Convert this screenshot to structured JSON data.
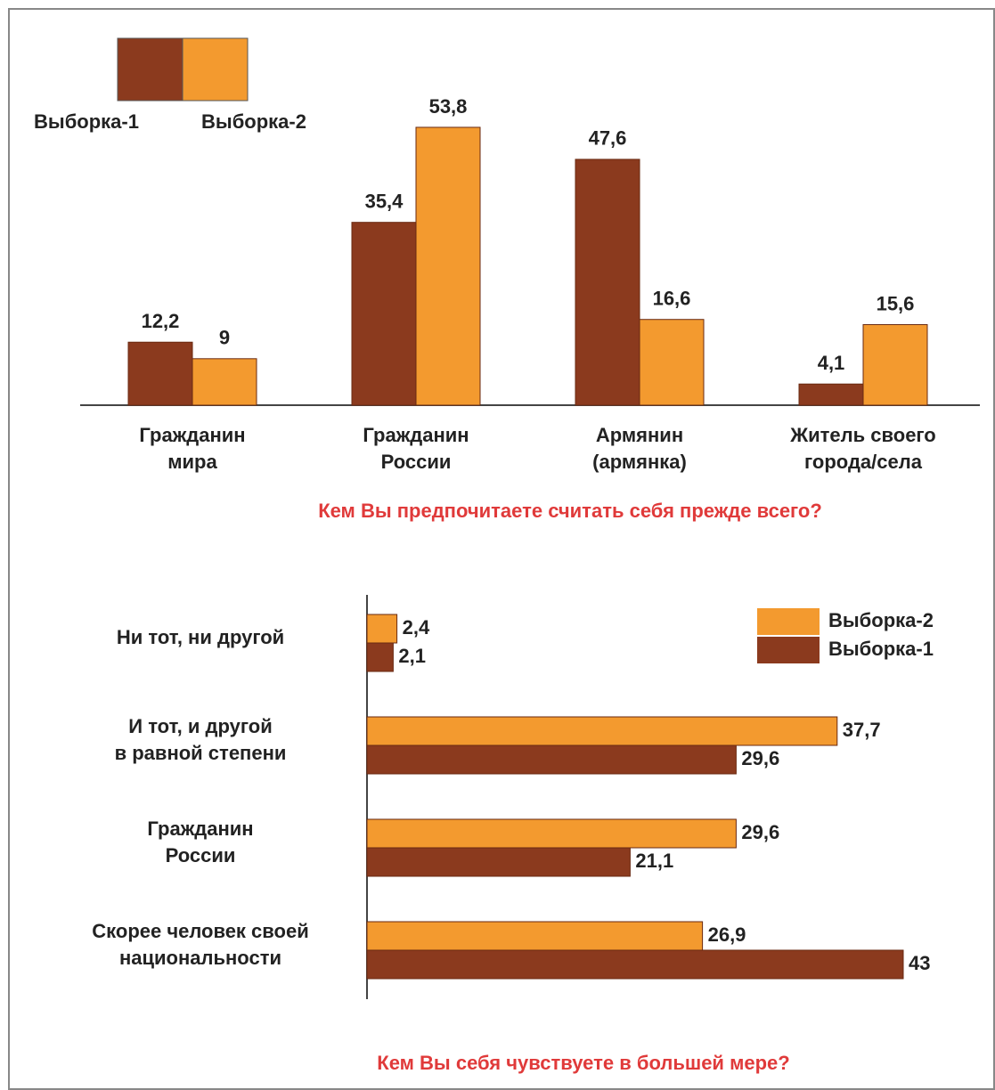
{
  "chart_data": [
    {
      "type": "bar",
      "title": "Кем Вы предпочитаете считать себя прежде всего?",
      "categories": [
        "Гражданин\nмира",
        "Гражданин\nРоссии",
        "Армянин\n(армянка)",
        "Житель своего\nгорода/села"
      ],
      "series": [
        {
          "name": "Выборка-1",
          "color": "#8b3a1e",
          "values": [
            12.2,
            35.4,
            47.6,
            4.1
          ],
          "value_labels": [
            "12,2",
            "35,4",
            "47,6",
            "4,1"
          ]
        },
        {
          "name": "Выборка-2",
          "color": "#f39a2f",
          "values": [
            9,
            53.8,
            16.6,
            15.6
          ],
          "value_labels": [
            "9",
            "53,8",
            "16,6",
            "15,6"
          ]
        }
      ],
      "ylim": [
        0,
        60
      ]
    },
    {
      "type": "hbar",
      "title": "Кем Вы себя чувствуете в большей мере?",
      "categories": [
        "Ни тот, ни другой",
        "И тот, и другой\nв равной степени",
        "Гражданин\nРоссии",
        "Скорее человек своей\nнациональности"
      ],
      "series": [
        {
          "name": "Выборка-2",
          "color": "#f39a2f",
          "values": [
            2.4,
            37.7,
            29.6,
            26.9
          ],
          "value_labels": [
            "2,4",
            "37,7",
            "29,6",
            "26,9"
          ]
        },
        {
          "name": "Выборка-1",
          "color": "#8b3a1e",
          "values": [
            2.1,
            29.6,
            21.1,
            43
          ],
          "value_labels": [
            "2,1",
            "29,6",
            "21,1",
            "43"
          ]
        }
      ],
      "xlim": [
        0,
        50
      ]
    }
  ]
}
